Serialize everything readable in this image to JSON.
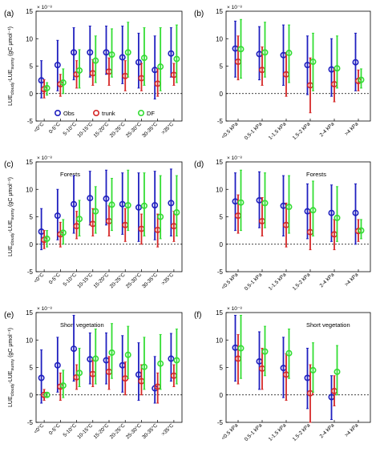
{
  "figure": {
    "ylabel_main": "LUE",
    "ylabel_sub_cloudy": "cloudy",
    "ylabel_mid": "-LUE",
    "ylabel_sub_sunny": "sunny",
    "ylabel_units": "(gC μmol⁻¹)",
    "multiplier": "× 10⁻⁸",
    "series_colors": {
      "Obs": "#1f1fbf",
      "trunk": "#d62828",
      "DF": "#33dd33"
    }
  },
  "chart_data": [
    {
      "panel": "(a)",
      "type": "scatter",
      "annotation": "",
      "legend": [
        "Obs",
        "trunk",
        "DF"
      ],
      "categories": [
        "<0°C",
        "0-5°C",
        "5-10°C",
        "10-15°C",
        "15-20°C",
        "20-25°C",
        "25-30°C",
        "30-35°C",
        ">35°C"
      ],
      "ylim": [
        -5,
        15
      ],
      "yticks": [
        -5,
        0,
        5,
        10,
        15
      ],
      "series": [
        {
          "name": "Obs",
          "values": [
            2.4,
            5.2,
            7.5,
            7.5,
            7.5,
            6.6,
            5.7,
            4.3,
            7.3
          ],
          "lo": [
            -0.8,
            0.5,
            2.5,
            3.0,
            3.5,
            1.8,
            1.0,
            -1.0,
            3.0
          ],
          "hi": [
            6.0,
            9.7,
            12.0,
            12.3,
            12.3,
            12.3,
            11.0,
            10.5,
            12.0
          ]
        },
        {
          "name": "trunk",
          "values": [
            0.8,
            1.7,
            3.5,
            3.7,
            4.0,
            3.2,
            2.8,
            1.8,
            3.4
          ],
          "lo": [
            -0.8,
            -0.5,
            1.0,
            1.5,
            1.5,
            0.5,
            0.5,
            -0.5,
            1.5
          ],
          "hi": [
            2.5,
            3.5,
            6.0,
            6.2,
            6.5,
            6.0,
            5.5,
            4.5,
            5.5
          ]
        },
        {
          "name": "DF",
          "values": [
            1.0,
            2.0,
            4.2,
            6.0,
            7.1,
            7.5,
            6.5,
            4.9,
            6.3
          ],
          "lo": [
            -0.3,
            0.0,
            1.0,
            2.0,
            3.0,
            3.0,
            1.5,
            0.5,
            2.0
          ],
          "hi": [
            2.0,
            4.5,
            8.0,
            10.5,
            11.8,
            13.0,
            12.0,
            12.0,
            12.5
          ]
        }
      ]
    },
    {
      "panel": "(b)",
      "type": "scatter",
      "annotation": "",
      "categories": [
        "<0.5 kPa",
        "0.5-1 kPa",
        "1-1.5 kPa",
        "1.5-2 kPa",
        "2-4 kPa",
        ">4 kPa"
      ],
      "ylim": [
        -5,
        15
      ],
      "yticks": [
        -5,
        0,
        5,
        10,
        15
      ],
      "series": [
        {
          "name": "Obs",
          "values": [
            8.2,
            7.2,
            7.0,
            5.2,
            4.4,
            5.7
          ],
          "lo": [
            3.0,
            2.5,
            1.5,
            -0.2,
            -0.5,
            0.5
          ],
          "hi": [
            13.2,
            12.2,
            12.5,
            10.5,
            10.0,
            11.0
          ]
        },
        {
          "name": "trunk",
          "values": [
            5.8,
            4.3,
            3.5,
            1.5,
            1.7,
            2.3
          ],
          "lo": [
            2.5,
            1.5,
            -0.5,
            -3.5,
            -1.5,
            0.5
          ],
          "hi": [
            10.5,
            8.5,
            7.5,
            6.5,
            4.5,
            4.3
          ]
        },
        {
          "name": "DF",
          "values": [
            8.1,
            7.5,
            7.4,
            5.8,
            4.6,
            2.5
          ],
          "lo": [
            2.8,
            3.0,
            2.0,
            0.5,
            1.0,
            1.0
          ],
          "hi": [
            13.5,
            13.0,
            12.5,
            11.0,
            10.5,
            4.5
          ]
        }
      ]
    },
    {
      "panel": "(c)",
      "type": "scatter",
      "annotation": "Forests",
      "categories": [
        "<0°C",
        "0-5°C",
        "5-10°C",
        "10-15°C",
        "15-20°C",
        "20-25°C",
        "25-30°C",
        "30-35°C",
        ">35°C"
      ],
      "ylim": [
        -5,
        15
      ],
      "yticks": [
        -5,
        0,
        5,
        10,
        15
      ],
      "series": [
        {
          "name": "Obs",
          "values": [
            2.3,
            5.2,
            7.3,
            8.4,
            8.3,
            7.3,
            6.7,
            7.1,
            7.5
          ],
          "lo": [
            -1.0,
            0.8,
            2.0,
            3.5,
            3.5,
            1.8,
            0.5,
            0.8,
            1.5
          ],
          "hi": [
            6.5,
            10.0,
            12.5,
            13.3,
            13.5,
            13.0,
            13.0,
            13.3,
            13.7
          ]
        },
        {
          "name": "trunk",
          "values": [
            0.8,
            1.8,
            3.3,
            3.7,
            4.2,
            3.5,
            2.8,
            2.6,
            3.3
          ],
          "lo": [
            -0.8,
            -0.5,
            1.0,
            1.5,
            1.5,
            0.5,
            0.0,
            -0.5,
            0.5
          ],
          "hi": [
            2.5,
            4.0,
            6.0,
            6.5,
            7.0,
            6.5,
            5.5,
            5.5,
            6.0
          ]
        },
        {
          "name": "DF",
          "values": [
            1.0,
            2.1,
            4.6,
            6.0,
            7.2,
            7.1,
            7.0,
            5.0,
            5.8
          ],
          "lo": [
            -0.5,
            0.0,
            1.5,
            2.0,
            2.5,
            2.5,
            1.5,
            1.0,
            1.5
          ],
          "hi": [
            2.5,
            4.5,
            8.0,
            10.5,
            12.0,
            13.5,
            13.0,
            12.5,
            12.5
          ]
        }
      ]
    },
    {
      "panel": "(d)",
      "type": "scatter",
      "annotation": "Forests",
      "categories": [
        "<0.5 kPa",
        "0.5-1 kPa",
        "1-1.5 kPa",
        "1.5-2 kPa",
        "2-4 kPa",
        ">4 kPa"
      ],
      "ylim": [
        -5,
        15
      ],
      "yticks": [
        -5,
        0,
        5,
        10,
        15
      ],
      "series": [
        {
          "name": "Obs",
          "values": [
            7.8,
            8.0,
            7.0,
            6.0,
            5.7,
            5.7
          ],
          "lo": [
            2.5,
            3.0,
            1.5,
            1.0,
            0.5,
            0.0
          ],
          "hi": [
            13.0,
            13.2,
            12.5,
            11.0,
            10.8,
            11.0
          ]
        },
        {
          "name": "trunk",
          "values": [
            5.2,
            4.2,
            3.5,
            2.2,
            1.8,
            2.4
          ],
          "lo": [
            2.0,
            1.5,
            -0.5,
            -1.0,
            -1.0,
            0.5
          ],
          "hi": [
            9.0,
            8.5,
            7.5,
            6.0,
            4.5,
            4.5
          ]
        },
        {
          "name": "DF",
          "values": [
            7.6,
            7.5,
            6.8,
            6.2,
            4.8,
            2.5
          ],
          "lo": [
            2.5,
            3.0,
            2.0,
            1.5,
            0.5,
            1.0
          ],
          "hi": [
            13.5,
            13.0,
            12.5,
            11.5,
            10.5,
            4.5
          ]
        }
      ]
    },
    {
      "panel": "(e)",
      "type": "scatter",
      "annotation": "Short vegetation",
      "categories": [
        "<0°C",
        "0-5°C",
        "5-10°C",
        "10-15°C",
        "15-20°C",
        "20-25°C",
        "25-30°C",
        "30-35°C",
        ">35°C"
      ],
      "ylim": [
        -5,
        15
      ],
      "yticks": [
        -5,
        0,
        5,
        10,
        15
      ],
      "series": [
        {
          "name": "Obs",
          "values": [
            3.1,
            5.4,
            8.4,
            6.5,
            6.3,
            5.4,
            3.7,
            1.2,
            6.6
          ],
          "lo": [
            -1.5,
            0.5,
            2.5,
            2.0,
            2.0,
            0.5,
            -1.0,
            -1.5,
            2.5
          ],
          "hi": [
            8.2,
            10.5,
            14.5,
            11.3,
            11.3,
            10.8,
            9.5,
            7.0,
            11.2
          ]
        },
        {
          "name": "trunk",
          "values": [
            0.0,
            1.5,
            3.2,
            3.8,
            4.2,
            3.0,
            2.5,
            1.5,
            3.5
          ],
          "lo": [
            -1.0,
            -1.0,
            1.0,
            1.5,
            1.0,
            0.0,
            0.0,
            -1.5,
            1.5
          ],
          "hi": [
            1.0,
            4.0,
            5.5,
            6.5,
            7.0,
            6.0,
            5.5,
            4.0,
            5.5
          ]
        },
        {
          "name": "DF",
          "values": [
            0.0,
            1.7,
            4.0,
            6.6,
            7.7,
            7.3,
            5.1,
            5.7,
            6.3
          ],
          "lo": [
            -0.3,
            -0.5,
            1.5,
            2.0,
            3.0,
            3.0,
            1.0,
            1.0,
            2.0
          ],
          "hi": [
            0.3,
            4.5,
            8.5,
            12.0,
            13.0,
            12.5,
            10.5,
            11.0,
            12.0
          ]
        }
      ]
    },
    {
      "panel": "(f)",
      "type": "scatter",
      "annotation": "Short vegetation",
      "categories": [
        "<0.5 kPa",
        "0.5-1 kPa",
        "1-1.5 kPa",
        "1.5-2 kPa",
        "2-4 kPa",
        ">4 kPa"
      ],
      "ylim": [
        -5,
        15
      ],
      "yticks": [
        -5,
        0,
        5,
        10,
        15
      ],
      "series": [
        {
          "name": "Obs",
          "values": [
            8.6,
            6.1,
            4.9,
            3.1,
            -0.4
          ],
          "lo": [
            2.5,
            1.0,
            -0.5,
            -2.5,
            -4.5
          ],
          "hi": [
            14.5,
            11.5,
            10.5,
            8.5,
            3.5
          ]
        },
        {
          "name": "trunk",
          "values": [
            6.6,
            4.8,
            3.7,
            0.3,
            0.7
          ],
          "lo": [
            2.0,
            1.0,
            -1.0,
            -5.0,
            -2.0
          ],
          "hi": [
            11.0,
            8.5,
            7.5,
            5.5,
            3.5
          ]
        },
        {
          "name": "DF",
          "values": [
            8.5,
            7.9,
            7.6,
            4.5,
            4.2
          ],
          "lo": [
            3.0,
            3.5,
            3.0,
            0.5,
            0.0
          ],
          "hi": [
            14.5,
            12.5,
            12.0,
            9.5,
            9.0
          ]
        }
      ]
    }
  ]
}
